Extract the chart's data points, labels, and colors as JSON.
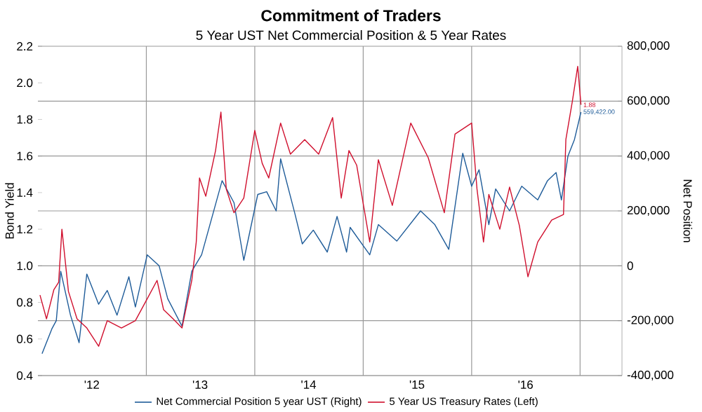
{
  "chart_data": {
    "type": "line",
    "title": "Commitment of Traders",
    "subtitle": "5 Year UST Net Commercial Position & 5 Year Rates",
    "ylabel": "Bond Yield",
    "y2label": "Net Position",
    "xlim": [
      "2012-01-01",
      "2017-05-22"
    ],
    "xticks": [
      {
        "value": "2012-07-01",
        "label": "'12"
      },
      {
        "value": "2013-07-01",
        "label": "'13"
      },
      {
        "value": "2014-07-01",
        "label": "'14"
      },
      {
        "value": "2015-07-01",
        "label": "'15"
      },
      {
        "value": "2016-07-01",
        "label": "'16"
      },
      {
        "value": "2013-01-01",
        "label": null
      },
      {
        "value": "2014-01-01",
        "label": null
      },
      {
        "value": "2015-01-01",
        "label": null
      },
      {
        "value": "2016-01-01",
        "label": null
      },
      {
        "value": "2017-01-01",
        "label": null
      }
    ],
    "ylim": [
      0.4,
      2.2
    ],
    "yticks": [
      0.4,
      0.6,
      0.8,
      {
        "value": 1,
        "label": "1.0"
      },
      1.2,
      1.4,
      1.6,
      1.8,
      {
        "value": 2,
        "label": "2.0"
      },
      2.2
    ],
    "y2lim": [
      -400000,
      800000
    ],
    "y2ticks": [
      {
        "value": -400000,
        "label": "-400,000"
      },
      {
        "value": -200000,
        "label": "-200,000"
      },
      0,
      {
        "value": 200000,
        "label": "200,000"
      },
      {
        "value": 400000,
        "label": "400,000"
      },
      {
        "value": 600000,
        "label": "600,000"
      },
      {
        "value": 800000,
        "label": "800,000"
      }
    ],
    "grid": true,
    "legend": "bottom",
    "series": [
      {
        "name": "Net Commercial Position 5 year UST (Right)",
        "color": "#1f5c99",
        "axis": "y2",
        "x": [
          "2012-01-15",
          "2012-02-17",
          "2012-03-03",
          "2012-03-18",
          "2012-04-20",
          "2012-05-19",
          "2012-06-14",
          "2012-07-24",
          "2012-08-22",
          "2012-09-24",
          "2012-11-03",
          "2012-11-25",
          "2013-01-04",
          "2013-02-13",
          "2013-03-14",
          "2013-05-01",
          "2013-06-03",
          "2013-07-06",
          "2013-09-13",
          "2013-10-23",
          "2013-11-25",
          "2014-01-11",
          "2014-02-10",
          "2014-03-14",
          "2014-03-29",
          "2014-05-16",
          "2014-06-10",
          "2014-07-17",
          "2014-09-02",
          "2014-10-05",
          "2014-11-06",
          "2014-11-18",
          "2015-01-23",
          "2015-02-21",
          "2015-04-24",
          "2015-07-13",
          "2015-08-30",
          "2015-10-16",
          "2015-12-02",
          "2016-01-01",
          "2016-01-26",
          "2016-02-28",
          "2016-03-22",
          "2016-05-08",
          "2016-06-18",
          "2016-08-11",
          "2016-09-13",
          "2016-10-12",
          "2016-10-30",
          "2016-11-21",
          "2016-12-13",
          "2017-01-04"
        ],
        "values": [
          -320000,
          -230000,
          -200000,
          -20000,
          -180000,
          -280000,
          -30000,
          -140000,
          -90000,
          -180000,
          -40000,
          -150000,
          40000,
          0,
          -120000,
          -220000,
          -20000,
          40000,
          310000,
          230000,
          20000,
          260000,
          270000,
          200000,
          390000,
          190000,
          80000,
          130000,
          50000,
          180000,
          50000,
          140000,
          40000,
          150000,
          90000,
          200000,
          150000,
          60000,
          410000,
          290000,
          350000,
          150000,
          280000,
          200000,
          290000,
          240000,
          310000,
          340000,
          240000,
          400000,
          460000,
          560000
        ]
      },
      {
        "name": "5 Year US Treasury Rates (Left)",
        "color": "#d0102e",
        "axis": "y",
        "x": [
          "2012-01-08",
          "2012-01-30",
          "2012-02-24",
          "2012-03-11",
          "2012-03-22",
          "2012-04-13",
          "2012-05-12",
          "2012-06-14",
          "2012-07-24",
          "2012-08-22",
          "2012-10-09",
          "2012-11-25",
          "2013-01-04",
          "2013-02-06",
          "2013-02-28",
          "2013-04-01",
          "2013-05-01",
          "2013-06-03",
          "2013-06-18",
          "2013-06-29",
          "2013-07-20",
          "2013-08-22",
          "2013-09-09",
          "2013-09-27",
          "2013-10-23",
          "2013-11-25",
          "2014-01-01",
          "2014-01-26",
          "2014-02-17",
          "2014-03-29",
          "2014-05-01",
          "2014-06-18",
          "2014-08-04",
          "2014-09-20",
          "2014-10-19",
          "2014-11-14",
          "2014-12-10",
          "2015-01-23",
          "2015-02-21",
          "2015-04-09",
          "2015-06-10",
          "2015-08-08",
          "2015-10-01",
          "2015-11-06",
          "2016-01-01",
          "2016-01-19",
          "2016-02-10",
          "2016-02-28",
          "2016-04-05",
          "2016-05-08",
          "2016-06-10",
          "2016-07-09",
          "2016-08-11",
          "2016-09-27",
          "2016-11-06",
          "2016-11-14",
          "2016-12-06",
          "2016-12-24",
          "2017-01-04"
        ],
        "values": [
          0.84,
          0.71,
          0.87,
          0.91,
          1.2,
          0.86,
          0.71,
          0.66,
          0.56,
          0.7,
          0.66,
          0.7,
          0.82,
          0.92,
          0.76,
          0.71,
          0.66,
          0.92,
          1.13,
          1.48,
          1.38,
          1.63,
          1.84,
          1.42,
          1.29,
          1.37,
          1.74,
          1.56,
          1.48,
          1.78,
          1.61,
          1.69,
          1.61,
          1.81,
          1.37,
          1.63,
          1.55,
          1.13,
          1.58,
          1.33,
          1.78,
          1.59,
          1.29,
          1.72,
          1.78,
          1.42,
          1.13,
          1.39,
          1.2,
          1.43,
          1.22,
          0.94,
          1.13,
          1.25,
          1.28,
          1.69,
          1.9,
          2.09,
          1.88
        ]
      }
    ],
    "annotations": [
      "559,422.00",
      "1.88"
    ]
  }
}
